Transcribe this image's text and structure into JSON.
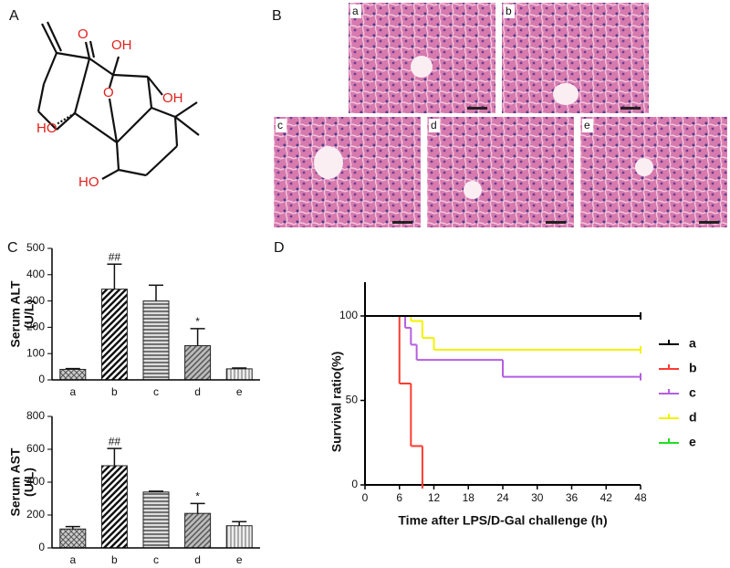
{
  "panels": [
    "A",
    "B",
    "C",
    "D"
  ],
  "structure": {
    "atoms": [
      "O",
      "OH",
      "OH",
      "O",
      "HO",
      "HO"
    ]
  },
  "histology": {
    "labels": [
      "a",
      "b",
      "c",
      "d",
      "e"
    ]
  },
  "chart_data": [
    {
      "type": "bar",
      "ylabel": "Serum ALT",
      "yunit": "(U/L)",
      "categories": [
        "a",
        "b",
        "c",
        "d",
        "e"
      ],
      "values": [
        40,
        345,
        300,
        130,
        42
      ],
      "errors": [
        3,
        95,
        60,
        65,
        3
      ],
      "annotations": [
        {
          "category": "b",
          "text": "##"
        },
        {
          "category": "d",
          "text": "*"
        }
      ],
      "ylim": [
        0,
        500
      ],
      "yticks": [
        0,
        100,
        200,
        300,
        400,
        500
      ]
    },
    {
      "type": "bar",
      "ylabel": "Serum AST",
      "yunit": "(U/L)",
      "categories": [
        "a",
        "b",
        "c",
        "d",
        "e"
      ],
      "values": [
        115,
        500,
        340,
        210,
        135
      ],
      "errors": [
        15,
        105,
        5,
        60,
        25
      ],
      "annotations": [
        {
          "category": "b",
          "text": "##"
        },
        {
          "category": "d",
          "text": "*"
        }
      ],
      "ylim": [
        0,
        800
      ],
      "yticks": [
        0,
        200,
        400,
        600,
        800
      ]
    },
    {
      "type": "line",
      "step": true,
      "xlabel": "Time after LPS/D-Gal challenge (h)",
      "ylabel": "Survival ratio(%)",
      "xlim": [
        0,
        48
      ],
      "xticks": [
        0,
        6,
        12,
        18,
        24,
        30,
        36,
        42,
        48
      ],
      "ylim": [
        0,
        120
      ],
      "yticks": [
        0,
        50,
        100
      ],
      "legend": "right",
      "series": [
        {
          "name": "a",
          "color": "#000000",
          "x": [
            0,
            48
          ],
          "values": [
            100,
            100
          ]
        },
        {
          "name": "b",
          "color": "#ff3b30",
          "x": [
            0,
            6,
            8,
            10
          ],
          "values": [
            100,
            60,
            23,
            0
          ]
        },
        {
          "name": "c",
          "color": "#b45fe0",
          "x": [
            0,
            7,
            8,
            9,
            24,
            48
          ],
          "values": [
            100,
            93,
            83,
            74,
            64,
            64
          ]
        },
        {
          "name": "d",
          "color": "#f2f200",
          "x": [
            0,
            8,
            10,
            12,
            48
          ],
          "values": [
            100,
            97,
            87,
            80,
            80
          ]
        },
        {
          "name": "e",
          "color": "#22dd22",
          "x": [
            0,
            48
          ],
          "values": [
            100,
            100
          ]
        }
      ]
    }
  ]
}
